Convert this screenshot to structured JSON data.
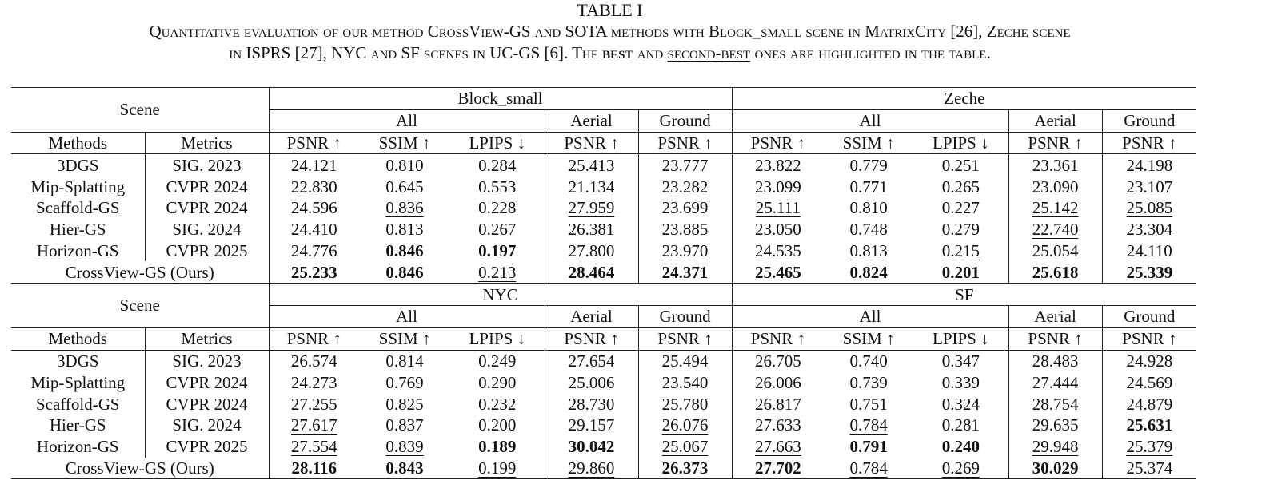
{
  "table": {
    "label": "TABLE I",
    "caption": {
      "part1": "Quantitative evaluation of our method CrossView-GS and SOTA methods with Block_small scene in MatrixCity [26], Zeche scene",
      "part2": "in ISPRS [27], NYC and SF scenes in UC-GS [6]. The",
      "best": "best",
      "and": "and",
      "second_best": "second-best",
      "part3": "ones are highlighted in the table."
    },
    "header_labels": {
      "scene": "Scene",
      "methods": "Methods",
      "metrics": "Metrics",
      "all": "All",
      "aerial": "Aerial",
      "ground": "Ground"
    },
    "metric_headers": [
      "PSNR ↑",
      "SSIM ↑",
      "LPIPS ↓",
      "PSNR ↑",
      "PSNR ↑"
    ],
    "methods": [
      {
        "name": "3DGS",
        "venue": "SIG. 2023"
      },
      {
        "name": "Mip-Splatting",
        "venue": "CVPR 2024"
      },
      {
        "name": "Scaffold-GS",
        "venue": "CVPR 2024"
      },
      {
        "name": "Hier-GS",
        "venue": "SIG. 2024"
      },
      {
        "name": "Horizon-GS",
        "venue": "CVPR 2025"
      },
      {
        "name": "CrossView-GS (Ours)",
        "venue": "",
        "merged": true
      }
    ],
    "blocks": [
      {
        "scenes": [
          "Block_small",
          "Zeche"
        ],
        "rows": [
          [
            [
              "24.121",
              ""
            ],
            [
              "0.810",
              ""
            ],
            [
              "0.284",
              ""
            ],
            [
              "25.413",
              ""
            ],
            [
              "23.777",
              ""
            ],
            [
              "23.822",
              ""
            ],
            [
              "0.779",
              ""
            ],
            [
              "0.251",
              ""
            ],
            [
              "23.361",
              ""
            ],
            [
              "24.198",
              ""
            ]
          ],
          [
            [
              "22.830",
              ""
            ],
            [
              "0.645",
              ""
            ],
            [
              "0.553",
              ""
            ],
            [
              "21.134",
              ""
            ],
            [
              "23.282",
              ""
            ],
            [
              "23.099",
              ""
            ],
            [
              "0.771",
              ""
            ],
            [
              "0.265",
              ""
            ],
            [
              "23.090",
              ""
            ],
            [
              "23.107",
              ""
            ]
          ],
          [
            [
              "24.596",
              ""
            ],
            [
              "0.836",
              "ul"
            ],
            [
              "0.228",
              ""
            ],
            [
              "27.959",
              "ul"
            ],
            [
              "23.699",
              ""
            ],
            [
              "25.111",
              "ul"
            ],
            [
              "0.810",
              ""
            ],
            [
              "0.227",
              ""
            ],
            [
              "25.142",
              "ul"
            ],
            [
              "25.085",
              "ul"
            ]
          ],
          [
            [
              "24.410",
              ""
            ],
            [
              "0.813",
              ""
            ],
            [
              "0.267",
              ""
            ],
            [
              "26.381",
              ""
            ],
            [
              "23.885",
              ""
            ],
            [
              "23.050",
              ""
            ],
            [
              "0.748",
              ""
            ],
            [
              "0.279",
              ""
            ],
            [
              "22.740",
              "ul"
            ],
            [
              "23.304",
              ""
            ]
          ],
          [
            [
              "24.776",
              "ul"
            ],
            [
              "0.846",
              "bold"
            ],
            [
              "0.197",
              "bold"
            ],
            [
              "27.800",
              ""
            ],
            [
              "23.970",
              "ul"
            ],
            [
              "24.535",
              ""
            ],
            [
              "0.813",
              "ul"
            ],
            [
              "0.215",
              "ul"
            ],
            [
              "25.054",
              ""
            ],
            [
              "24.110",
              ""
            ]
          ],
          [
            [
              "25.233",
              "bold"
            ],
            [
              "0.846",
              "bold"
            ],
            [
              "0.213",
              "ul"
            ],
            [
              "28.464",
              "bold"
            ],
            [
              "24.371",
              "bold"
            ],
            [
              "25.465",
              "bold"
            ],
            [
              "0.824",
              "bold"
            ],
            [
              "0.201",
              "bold"
            ],
            [
              "25.618",
              "bold"
            ],
            [
              "25.339",
              "bold"
            ]
          ]
        ]
      },
      {
        "scenes": [
          "NYC",
          "SF"
        ],
        "rows": [
          [
            [
              "26.574",
              ""
            ],
            [
              "0.814",
              ""
            ],
            [
              "0.249",
              ""
            ],
            [
              "27.654",
              ""
            ],
            [
              "25.494",
              ""
            ],
            [
              "26.705",
              ""
            ],
            [
              "0.740",
              ""
            ],
            [
              "0.347",
              ""
            ],
            [
              "28.483",
              ""
            ],
            [
              "24.928",
              ""
            ]
          ],
          [
            [
              "24.273",
              ""
            ],
            [
              "0.769",
              ""
            ],
            [
              "0.290",
              ""
            ],
            [
              "25.006",
              ""
            ],
            [
              "23.540",
              ""
            ],
            [
              "26.006",
              ""
            ],
            [
              "0.739",
              ""
            ],
            [
              "0.339",
              ""
            ],
            [
              "27.444",
              ""
            ],
            [
              "24.569",
              ""
            ]
          ],
          [
            [
              "27.255",
              ""
            ],
            [
              "0.825",
              ""
            ],
            [
              "0.232",
              ""
            ],
            [
              "28.730",
              ""
            ],
            [
              "25.780",
              ""
            ],
            [
              "26.817",
              ""
            ],
            [
              "0.751",
              ""
            ],
            [
              "0.324",
              ""
            ],
            [
              "28.754",
              ""
            ],
            [
              "24.879",
              ""
            ]
          ],
          [
            [
              "27.617",
              "ul"
            ],
            [
              "0.837",
              ""
            ],
            [
              "0.200",
              ""
            ],
            [
              "29.157",
              ""
            ],
            [
              "26.076",
              "ul"
            ],
            [
              "27.633",
              ""
            ],
            [
              "0.784",
              "ul"
            ],
            [
              "0.281",
              ""
            ],
            [
              "29.635",
              ""
            ],
            [
              "25.631",
              "bold"
            ]
          ],
          [
            [
              "27.554",
              "ul"
            ],
            [
              "0.839",
              "ul"
            ],
            [
              "0.189",
              "bold"
            ],
            [
              "30.042",
              "bold"
            ],
            [
              "25.067",
              "ul"
            ],
            [
              "27.663",
              "ul"
            ],
            [
              "0.791",
              "bold"
            ],
            [
              "0.240",
              "bold"
            ],
            [
              "29.948",
              "ul"
            ],
            [
              "25.379",
              "ul"
            ]
          ],
          [
            [
              "28.116",
              "bold"
            ],
            [
              "0.843",
              "bold"
            ],
            [
              "0.199",
              "ul"
            ],
            [
              "29.860",
              "ul"
            ],
            [
              "26.373",
              "bold"
            ],
            [
              "27.702",
              "bold"
            ],
            [
              "0.784",
              "ul"
            ],
            [
              "0.269",
              "ul"
            ],
            [
              "30.029",
              "bold"
            ],
            [
              "25.374",
              ""
            ]
          ]
        ]
      }
    ]
  }
}
